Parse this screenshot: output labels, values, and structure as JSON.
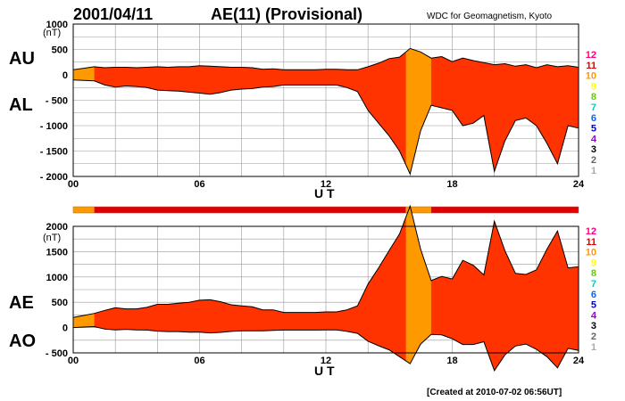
{
  "header": {
    "date": "2001/04/11",
    "title": "AE(11) (Provisional)",
    "source": "WDC for Geomagnetism, Kyoto"
  },
  "footer": {
    "created": "[Created at 2010-07-02 06:56UT]"
  },
  "legend": {
    "numbers": [
      "12",
      "11",
      "10",
      "9",
      "8",
      "7",
      "6",
      "5",
      "4",
      "3",
      "2",
      "1"
    ],
    "colors": [
      "#ff0080",
      "#e00000",
      "#ff9900",
      "#ffff00",
      "#66cc00",
      "#00cccc",
      "#0066ff",
      "#0000cc",
      "#9900cc",
      "#000000",
      "#666666",
      "#aaaaaa"
    ]
  },
  "colors": {
    "fill_red": "#ff3300",
    "fill_orange": "#ff9900",
    "line": "#000000",
    "grid": "#999999"
  },
  "chart_data": [
    {
      "type": "area",
      "panel": "AU/AL",
      "labels_left": [
        "AU",
        "AL"
      ],
      "unit": "(nT)",
      "xlabel": "U T",
      "xlim": [
        0,
        24
      ],
      "x_ticks": [
        "00",
        "06",
        "12",
        "18",
        "24"
      ],
      "ylim": [
        -2000,
        1000
      ],
      "y_ticks": [
        "1000",
        "500",
        "0",
        "- 500",
        "- 1000",
        "- 1500",
        "- 2000"
      ],
      "x": [
        0,
        0.5,
        1,
        1.5,
        2,
        2.5,
        3,
        3.5,
        4,
        4.5,
        5,
        5.5,
        6,
        6.5,
        7,
        7.5,
        8,
        8.5,
        9,
        9.5,
        10,
        10.5,
        11,
        11.5,
        12,
        12.5,
        13,
        13.5,
        14,
        14.5,
        15,
        15.5,
        16,
        16.5,
        17,
        17.5,
        18,
        18.5,
        19,
        19.5,
        20,
        20.5,
        21,
        21.5,
        22,
        22.5,
        23,
        23.5,
        24
      ],
      "series": [
        {
          "name": "AU",
          "values": [
            100,
            130,
            160,
            140,
            150,
            150,
            140,
            150,
            160,
            150,
            160,
            160,
            180,
            170,
            160,
            150,
            150,
            140,
            110,
            120,
            100,
            100,
            100,
            100,
            110,
            110,
            100,
            100,
            160,
            230,
            320,
            350,
            520,
            450,
            330,
            360,
            260,
            330,
            280,
            240,
            200,
            220,
            170,
            200,
            140,
            200,
            160,
            180,
            150
          ]
        },
        {
          "name": "AL",
          "values": [
            -100,
            -110,
            -120,
            -200,
            -240,
            -220,
            -230,
            -250,
            -300,
            -310,
            -320,
            -340,
            -360,
            -380,
            -350,
            -300,
            -280,
            -270,
            -240,
            -230,
            -200,
            -200,
            -200,
            -200,
            -200,
            -200,
            -250,
            -330,
            -700,
            -950,
            -1200,
            -1500,
            -1950,
            -1100,
            -600,
            -650,
            -700,
            -1000,
            -950,
            -800,
            -1900,
            -1300,
            -900,
            -850,
            -1000,
            -1350,
            -1750,
            -1000,
            -1050
          ]
        }
      ]
    },
    {
      "type": "area",
      "panel": "AE/AO",
      "labels_left": [
        "AE",
        "AO"
      ],
      "unit": "(nT)",
      "xlabel": "U T",
      "xlim": [
        0,
        24
      ],
      "x_ticks": [
        "00",
        "06",
        "12",
        "18",
        "24"
      ],
      "ylim": [
        -500,
        2000
      ],
      "y_ticks": [
        "2000",
        "1500",
        "1000",
        "500",
        "0",
        "- 500"
      ],
      "x": [
        0,
        0.5,
        1,
        1.5,
        2,
        2.5,
        3,
        3.5,
        4,
        4.5,
        5,
        5.5,
        6,
        6.5,
        7,
        7.5,
        8,
        8.5,
        9,
        9.5,
        10,
        10.5,
        11,
        11.5,
        12,
        12.5,
        13,
        13.5,
        14,
        14.5,
        15,
        15.5,
        16,
        16.5,
        17,
        17.5,
        18,
        18.5,
        19,
        19.5,
        20,
        20.5,
        21,
        21.5,
        22,
        22.5,
        23,
        23.5,
        24
      ],
      "series": [
        {
          "name": "AE",
          "values": [
            200,
            240,
            280,
            340,
            390,
            370,
            370,
            400,
            460,
            460,
            480,
            500,
            540,
            550,
            510,
            450,
            430,
            410,
            350,
            350,
            300,
            300,
            300,
            300,
            310,
            310,
            350,
            430,
            860,
            1180,
            1520,
            1850,
            2400,
            1550,
            930,
            1010,
            960,
            1330,
            1230,
            1040,
            2100,
            1520,
            1070,
            1050,
            1140,
            1550,
            1910,
            1180,
            1200
          ]
        },
        {
          "name": "AO",
          "values": [
            0,
            10,
            20,
            -30,
            -45,
            -35,
            -45,
            -50,
            -70,
            -80,
            -80,
            -90,
            -90,
            -105,
            -95,
            -75,
            -65,
            -65,
            -65,
            -55,
            -50,
            -50,
            -50,
            -50,
            -45,
            -45,
            -75,
            -115,
            -270,
            -360,
            -440,
            -575,
            -715,
            -325,
            -135,
            -145,
            -220,
            -335,
            -335,
            -280,
            -850,
            -540,
            -365,
            -325,
            -430,
            -575,
            -795,
            -410,
            -450
          ]
        }
      ]
    }
  ],
  "activity_bar": {
    "segments": [
      {
        "from": 0,
        "to": 1,
        "level": "10"
      },
      {
        "from": 1,
        "to": 15.8,
        "level": "11"
      },
      {
        "from": 15.8,
        "to": 17,
        "level": "10"
      },
      {
        "from": 17,
        "to": 24,
        "level": "11"
      }
    ]
  }
}
